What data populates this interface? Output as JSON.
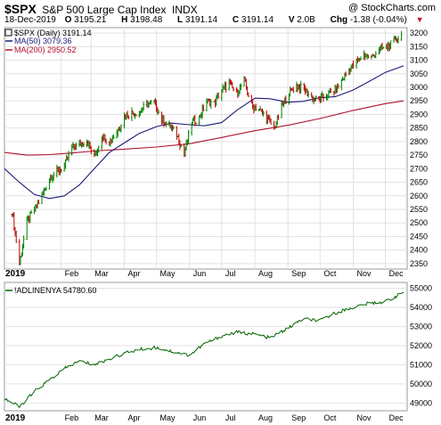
{
  "header": {
    "ticker": "$SPX",
    "name": "S&P 500 Large Cap Index",
    "exchange": "INDX",
    "brand": "@ StockCharts.com",
    "date": "18-Dec-2019",
    "open_label": "O",
    "open": "3195.21",
    "high_label": "H",
    "high": "3198.48",
    "low_label": "L",
    "low": "3191.14",
    "close_label": "C",
    "close": "3191.14",
    "volume_label": "V",
    "volume": "2.0B",
    "chg_label": "Chg",
    "chg": "-1.38 (-0.04%)"
  },
  "legend": {
    "price": "$SPX (Daily) 3191.14",
    "ma50": "MA(50) 3079.36",
    "ma200": "MA(200) 2950.52",
    "adline": "!ADLINENYA 54780.60"
  },
  "colors": {
    "price": "#000000",
    "up": "#008000",
    "down": "#c00000",
    "ma50": "#1a1a7a",
    "ma200": "#b01030",
    "adline": "#006400",
    "grid": "#e2e2e2"
  },
  "chart_data": [
    {
      "type": "line",
      "title": "$SPX S&P 500 Large Cap Index INDX",
      "ylim": [
        2330,
        3220
      ],
      "y_ticks": [
        2350,
        2400,
        2450,
        2500,
        2550,
        2600,
        2650,
        2700,
        2750,
        2800,
        2850,
        2900,
        2950,
        3000,
        3050,
        3100,
        3150,
        3200
      ],
      "x_labels": [
        "2019",
        "Feb",
        "Mar",
        "Apr",
        "May",
        "Jun",
        "Jul",
        "Aug",
        "Sep",
        "Oct",
        "Nov",
        "Dec"
      ],
      "x_label_dates": [
        "2019-01-01",
        "2019-02-01",
        "2019-03-01",
        "2019-04-01",
        "2019-05-01",
        "2019-06-01",
        "2019-07-01",
        "2019-08-01",
        "2019-09-01",
        "2019-10-01",
        "2019-11-01",
        "2019-12-01"
      ],
      "x_range": [
        "2018-12-10",
        "2019-12-18"
      ],
      "grid": true,
      "series": [
        {
          "name": "$SPX (Daily) 3191.14",
          "points": [
            [
              "2018-12-17",
              2545
            ],
            [
              "2018-12-24",
              2351
            ],
            [
              "2018-12-31",
              2506
            ],
            [
              "2019-01-07",
              2549
            ],
            [
              "2019-01-14",
              2596
            ],
            [
              "2019-01-21",
              2665
            ],
            [
              "2019-01-28",
              2690
            ],
            [
              "2019-02-04",
              2708
            ],
            [
              "2019-02-11",
              2775
            ],
            [
              "2019-02-18",
              2792
            ],
            [
              "2019-02-25",
              2803
            ],
            [
              "2019-03-04",
              2743
            ],
            [
              "2019-03-11",
              2822
            ],
            [
              "2019-03-18",
              2800
            ],
            [
              "2019-03-25",
              2834
            ],
            [
              "2019-04-01",
              2892
            ],
            [
              "2019-04-08",
              2907
            ],
            [
              "2019-04-15",
              2905
            ],
            [
              "2019-04-22",
              2939
            ],
            [
              "2019-04-29",
              2945
            ],
            [
              "2019-05-06",
              2881
            ],
            [
              "2019-05-13",
              2859
            ],
            [
              "2019-05-20",
              2826
            ],
            [
              "2019-05-27",
              2752
            ],
            [
              "2019-06-03",
              2873
            ],
            [
              "2019-06-10",
              2886
            ],
            [
              "2019-06-17",
              2950
            ],
            [
              "2019-06-24",
              2941
            ],
            [
              "2019-07-01",
              2990
            ],
            [
              "2019-07-08",
              3013
            ],
            [
              "2019-07-15",
              2976
            ],
            [
              "2019-07-22",
              3025
            ],
            [
              "2019-07-29",
              2932
            ],
            [
              "2019-08-05",
              2918
            ],
            [
              "2019-08-12",
              2888
            ],
            [
              "2019-08-19",
              2847
            ],
            [
              "2019-08-26",
              2926
            ],
            [
              "2019-09-02",
              2978
            ],
            [
              "2019-09-09",
              3007
            ],
            [
              "2019-09-16",
              2992
            ],
            [
              "2019-09-23",
              2961
            ],
            [
              "2019-09-30",
              2952
            ],
            [
              "2019-10-07",
              2970
            ],
            [
              "2019-10-14",
              2986
            ],
            [
              "2019-10-21",
              3022
            ],
            [
              "2019-10-28",
              3066
            ],
            [
              "2019-11-04",
              3093
            ],
            [
              "2019-11-11",
              3120
            ],
            [
              "2019-11-18",
              3110
            ],
            [
              "2019-11-25",
              3141
            ],
            [
              "2019-12-02",
              3145
            ],
            [
              "2019-12-09",
              3169
            ],
            [
              "2019-12-16",
              3191
            ]
          ]
        },
        {
          "name": "MA(50) 3079.36",
          "points": [
            [
              "2018-12-10",
              2700
            ],
            [
              "2018-12-24",
              2650
            ],
            [
              "2019-01-07",
              2605
            ],
            [
              "2019-01-21",
              2590
            ],
            [
              "2019-02-04",
              2600
            ],
            [
              "2019-02-18",
              2640
            ],
            [
              "2019-03-04",
              2700
            ],
            [
              "2019-03-18",
              2760
            ],
            [
              "2019-04-01",
              2795
            ],
            [
              "2019-04-15",
              2830
            ],
            [
              "2019-05-01",
              2855
            ],
            [
              "2019-05-15",
              2868
            ],
            [
              "2019-06-01",
              2862
            ],
            [
              "2019-06-15",
              2858
            ],
            [
              "2019-07-01",
              2870
            ],
            [
              "2019-07-15",
              2915
            ],
            [
              "2019-08-01",
              2960
            ],
            [
              "2019-08-15",
              2958
            ],
            [
              "2019-09-01",
              2945
            ],
            [
              "2019-09-15",
              2948
            ],
            [
              "2019-10-01",
              2962
            ],
            [
              "2019-10-15",
              2965
            ],
            [
              "2019-11-01",
              2990
            ],
            [
              "2019-11-15",
              3020
            ],
            [
              "2019-12-01",
              3055
            ],
            [
              "2019-12-18",
              3079
            ]
          ]
        },
        {
          "name": "MA(200) 2950.52",
          "points": [
            [
              "2018-12-10",
              2760
            ],
            [
              "2018-12-31",
              2750
            ],
            [
              "2019-01-21",
              2752
            ],
            [
              "2019-02-11",
              2758
            ],
            [
              "2019-03-04",
              2765
            ],
            [
              "2019-04-01",
              2772
            ],
            [
              "2019-05-01",
              2780
            ],
            [
              "2019-06-01",
              2792
            ],
            [
              "2019-07-01",
              2815
            ],
            [
              "2019-08-01",
              2840
            ],
            [
              "2019-09-01",
              2860
            ],
            [
              "2019-10-01",
              2885
            ],
            [
              "2019-11-01",
              2915
            ],
            [
              "2019-12-01",
              2940
            ],
            [
              "2019-12-18",
              2950
            ]
          ]
        }
      ]
    },
    {
      "type": "line",
      "ylim": [
        48600,
        55300
      ],
      "y_ticks": [
        49000,
        50000,
        51000,
        52000,
        53000,
        54000,
        55000
      ],
      "x_labels": [
        "2019",
        "Feb",
        "Mar",
        "Apr",
        "May",
        "Jun",
        "Jul",
        "Aug",
        "Sep",
        "Oct",
        "Nov",
        "Dec"
      ],
      "grid": true,
      "series": [
        {
          "name": "!ADLINENYA 54780.60",
          "points": [
            [
              "2018-12-10",
              49250
            ],
            [
              "2018-12-24",
              48800
            ],
            [
              "2019-01-07",
              49600
            ],
            [
              "2019-01-21",
              50200
            ],
            [
              "2019-02-04",
              50800
            ],
            [
              "2019-02-18",
              51200
            ],
            [
              "2019-03-04",
              51000
            ],
            [
              "2019-03-18",
              51300
            ],
            [
              "2019-04-01",
              51600
            ],
            [
              "2019-04-15",
              51800
            ],
            [
              "2019-05-01",
              51900
            ],
            [
              "2019-05-15",
              51700
            ],
            [
              "2019-06-01",
              51500
            ],
            [
              "2019-06-15",
              52100
            ],
            [
              "2019-07-01",
              52500
            ],
            [
              "2019-07-15",
              52700
            ],
            [
              "2019-08-01",
              52600
            ],
            [
              "2019-08-15",
              52400
            ],
            [
              "2019-09-01",
              52900
            ],
            [
              "2019-09-15",
              53400
            ],
            [
              "2019-10-01",
              53300
            ],
            [
              "2019-10-15",
              53700
            ],
            [
              "2019-11-01",
              54000
            ],
            [
              "2019-11-15",
              54200
            ],
            [
              "2019-12-01",
              54300
            ],
            [
              "2019-12-18",
              54780
            ]
          ]
        }
      ]
    }
  ]
}
